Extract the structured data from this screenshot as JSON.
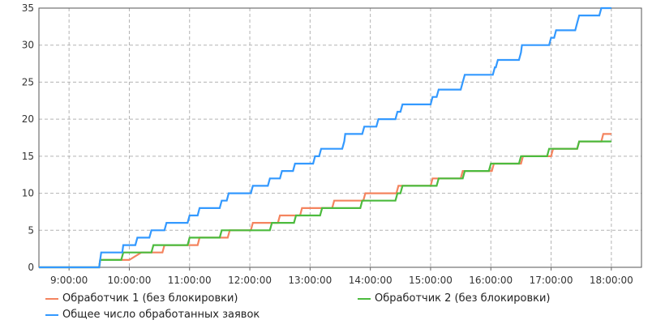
{
  "chart_data": {
    "type": "line",
    "step": true,
    "title": "",
    "xlabel": "",
    "ylabel": "",
    "xlim": [
      "8:30",
      "18:30"
    ],
    "ylim": [
      0,
      35
    ],
    "x_ticks": [
      "9:00:00",
      "10:00:00",
      "11:00:00",
      "12:00:00",
      "13:00:00",
      "14:00:00",
      "15:00:00",
      "16:00:00",
      "17:00:00",
      "18:00:00"
    ],
    "y_ticks": [
      0,
      5,
      10,
      15,
      20,
      25,
      30,
      35
    ],
    "grid": true,
    "legend_position": "bottom",
    "series": [
      {
        "name": "Обработчик 1 (без блокировки)",
        "color": "#f4845f",
        "points": [
          [
            "8:30",
            0
          ],
          [
            "9:30",
            0
          ],
          [
            "9:31",
            1
          ],
          [
            "10:00",
            1
          ],
          [
            "10:12",
            2
          ],
          [
            "10:33",
            2
          ],
          [
            "10:35",
            3
          ],
          [
            "11:08",
            3
          ],
          [
            "11:10",
            4
          ],
          [
            "11:38",
            4
          ],
          [
            "11:40",
            5
          ],
          [
            "12:01",
            5
          ],
          [
            "12:03",
            6
          ],
          [
            "12:28",
            6
          ],
          [
            "12:30",
            7
          ],
          [
            "12:50",
            7
          ],
          [
            "12:52",
            8
          ],
          [
            "13:22",
            8
          ],
          [
            "13:24",
            9
          ],
          [
            "13:53",
            9
          ],
          [
            "13:55",
            10
          ],
          [
            "14:26",
            10
          ],
          [
            "14:28",
            11
          ],
          [
            "15:00",
            11
          ],
          [
            "15:02",
            12
          ],
          [
            "15:30",
            12
          ],
          [
            "15:32",
            13
          ],
          [
            "16:01",
            13
          ],
          [
            "16:03",
            14
          ],
          [
            "16:30",
            14
          ],
          [
            "16:32",
            15
          ],
          [
            "17:00",
            15
          ],
          [
            "17:02",
            16
          ],
          [
            "17:26",
            16
          ],
          [
            "17:28",
            17
          ],
          [
            "17:50",
            17
          ],
          [
            "17:52",
            18
          ],
          [
            "18:00",
            18
          ]
        ]
      },
      {
        "name": "Обработчик 2 (без блокировки)",
        "color": "#4cbb3e",
        "points": [
          [
            "8:30",
            0
          ],
          [
            "9:30",
            0
          ],
          [
            "9:31",
            1
          ],
          [
            "9:52",
            1
          ],
          [
            "9:54",
            2
          ],
          [
            "10:22",
            2
          ],
          [
            "10:24",
            3
          ],
          [
            "10:58",
            3
          ],
          [
            "11:00",
            4
          ],
          [
            "11:30",
            4
          ],
          [
            "11:32",
            5
          ],
          [
            "12:20",
            5
          ],
          [
            "12:22",
            6
          ],
          [
            "12:44",
            6
          ],
          [
            "12:46",
            7
          ],
          [
            "13:10",
            7
          ],
          [
            "13:12",
            8
          ],
          [
            "13:50",
            8
          ],
          [
            "13:52",
            9
          ],
          [
            "14:25",
            9
          ],
          [
            "14:27",
            10
          ],
          [
            "14:30",
            10
          ],
          [
            "14:32",
            11
          ],
          [
            "15:06",
            11
          ],
          [
            "15:08",
            12
          ],
          [
            "15:32",
            12
          ],
          [
            "15:34",
            13
          ],
          [
            "15:58",
            13
          ],
          [
            "16:00",
            14
          ],
          [
            "16:28",
            14
          ],
          [
            "16:30",
            15
          ],
          [
            "16:56",
            15
          ],
          [
            "16:58",
            16
          ],
          [
            "17:26",
            16
          ],
          [
            "17:28",
            17
          ],
          [
            "18:00",
            17
          ]
        ]
      },
      {
        "name": "Общее число обработанных заявок",
        "color": "#3399ff",
        "points": [
          [
            "8:30",
            0
          ],
          [
            "9:30",
            0
          ],
          [
            "9:31",
            1
          ],
          [
            "9:32",
            2
          ],
          [
            "9:53",
            2
          ],
          [
            "9:54",
            3
          ],
          [
            "10:06",
            3
          ],
          [
            "10:08",
            4
          ],
          [
            "10:20",
            4
          ],
          [
            "10:22",
            5
          ],
          [
            "10:35",
            5
          ],
          [
            "10:37",
            6
          ],
          [
            "10:58",
            6
          ],
          [
            "11:00",
            7
          ],
          [
            "11:08",
            7
          ],
          [
            "11:10",
            8
          ],
          [
            "11:30",
            8
          ],
          [
            "11:32",
            9
          ],
          [
            "11:37",
            9
          ],
          [
            "11:39",
            10
          ],
          [
            "12:01",
            10
          ],
          [
            "12:03",
            11
          ],
          [
            "12:18",
            11
          ],
          [
            "12:20",
            12
          ],
          [
            "12:30",
            12
          ],
          [
            "12:32",
            13
          ],
          [
            "12:43",
            13
          ],
          [
            "12:45",
            14
          ],
          [
            "13:03",
            14
          ],
          [
            "13:05",
            15
          ],
          [
            "13:09",
            15
          ],
          [
            "13:11",
            16
          ],
          [
            "13:32",
            16
          ],
          [
            "13:34",
            17
          ],
          [
            "13:35",
            18
          ],
          [
            "13:52",
            18
          ],
          [
            "13:54",
            19
          ],
          [
            "14:06",
            19
          ],
          [
            "14:08",
            20
          ],
          [
            "14:25",
            20
          ],
          [
            "14:27",
            21
          ],
          [
            "14:30",
            21
          ],
          [
            "14:32",
            22
          ],
          [
            "15:00",
            22
          ],
          [
            "15:02",
            23
          ],
          [
            "15:06",
            23
          ],
          [
            "15:08",
            24
          ],
          [
            "15:30",
            24
          ],
          [
            "15:32",
            25
          ],
          [
            "15:34",
            26
          ],
          [
            "16:02",
            26
          ],
          [
            "16:04",
            27
          ],
          [
            "16:05",
            27
          ],
          [
            "16:07",
            28
          ],
          [
            "16:28",
            28
          ],
          [
            "16:30",
            29
          ],
          [
            "16:31",
            30
          ],
          [
            "16:58",
            30
          ],
          [
            "17:00",
            31
          ],
          [
            "17:03",
            31
          ],
          [
            "17:05",
            32
          ],
          [
            "17:24",
            32
          ],
          [
            "17:26",
            33
          ],
          [
            "17:28",
            34
          ],
          [
            "17:48",
            34
          ],
          [
            "17:50",
            35
          ],
          [
            "18:00",
            35
          ]
        ]
      }
    ]
  }
}
